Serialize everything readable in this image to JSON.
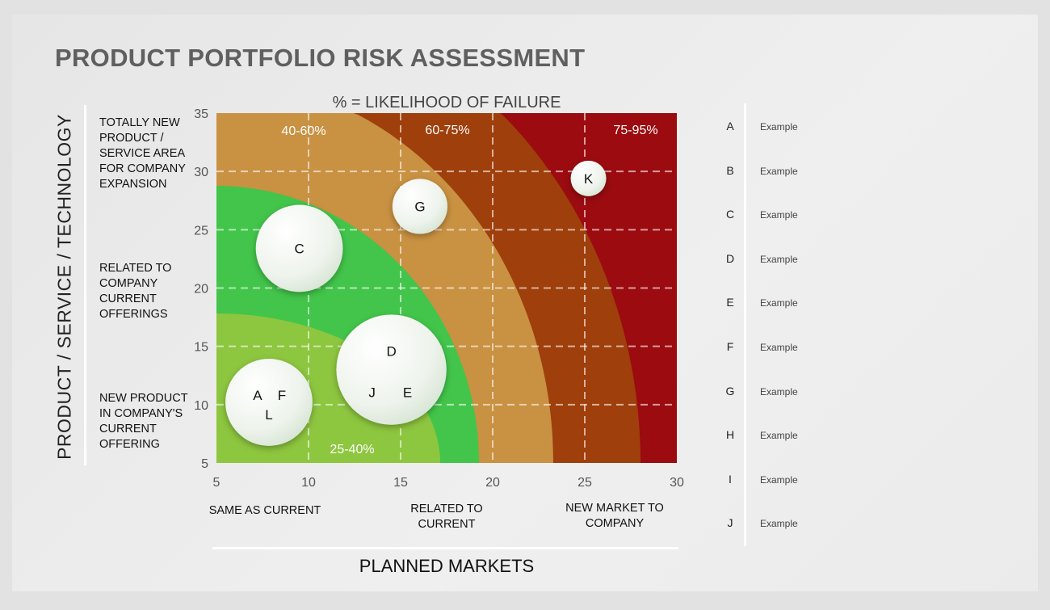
{
  "title": "PRODUCT PORTFOLIO RISK ASSESSMENT",
  "y_axis": {
    "title": "PRODUCT / SERVICE / TECHNOLOGY",
    "categories": [
      "TOTALLY NEW PRODUCT / SERVICE AREA FOR COMPANY EXPANSION",
      "RELATED TO COMPANY CURRENT OFFERINGS",
      "NEW PRODUCT IN COMPANY'S CURRENT OFFERING"
    ]
  },
  "x_axis": {
    "title": "PLANNED MARKETS",
    "categories": [
      "SAME AS CURRENT",
      "RELATED TO CURRENT",
      "NEW MARKET TO COMPANY"
    ]
  },
  "legend": {
    "items": [
      {
        "letter": "A",
        "text": "Example"
      },
      {
        "letter": "B",
        "text": "Example"
      },
      {
        "letter": "C",
        "text": "Example"
      },
      {
        "letter": "D",
        "text": "Example"
      },
      {
        "letter": "E",
        "text": "Example"
      },
      {
        "letter": "F",
        "text": "Example"
      },
      {
        "letter": "G",
        "text": "Example"
      },
      {
        "letter": "H",
        "text": "Example"
      },
      {
        "letter": "I",
        "text": "Example"
      },
      {
        "letter": "J",
        "text": "Example"
      }
    ]
  },
  "chart_data": {
    "type": "scatter",
    "subtype": "bubble",
    "title": "% = LIKELIHOOD OF FAILURE",
    "xlim": [
      5,
      30
    ],
    "ylim": [
      5,
      35
    ],
    "xticks": [
      "5",
      "10",
      "15",
      "20",
      "25",
      "30"
    ],
    "yticks": [
      "35",
      "30",
      "25",
      "20",
      "15",
      "10",
      "5"
    ],
    "grid": true,
    "zones": [
      {
        "label": "75-95%",
        "color": "#9b0b10"
      },
      {
        "label": "60-75%",
        "color": "#9e3f0c"
      },
      {
        "label": "40-60%",
        "color": "#c99142"
      },
      {
        "label": "",
        "color": "#42c54a"
      },
      {
        "label": "25-40%",
        "color": "#8dc63f"
      }
    ],
    "bubbles": [
      {
        "labels": [
          "K"
        ],
        "x": 25.2,
        "y": 29.4,
        "size": 1
      },
      {
        "labels": [
          "G"
        ],
        "x": 16.05,
        "y": 27.0,
        "size": 2.4
      },
      {
        "labels": [
          "C"
        ],
        "x": 9.5,
        "y": 23.4,
        "size": 6
      },
      {
        "labels": [
          "D",
          "J",
          "E"
        ],
        "x": 14.5,
        "y": 13.0,
        "size": 9.6
      },
      {
        "labels": [
          "A",
          "F",
          "L"
        ],
        "x": 7.85,
        "y": 10.2,
        "size": 6
      }
    ]
  }
}
